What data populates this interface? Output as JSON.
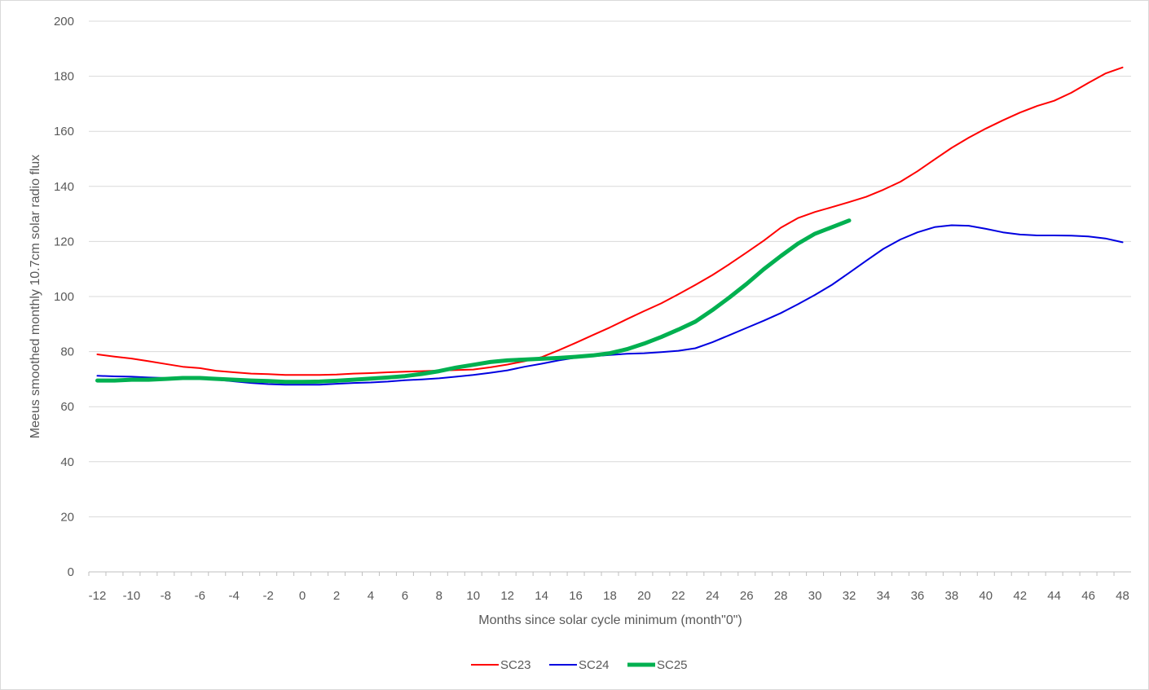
{
  "chart_data": {
    "type": "line",
    "title": "",
    "xlabel": "Months since solar cycle minimum (month\"0\")",
    "ylabel": "Meeus smoothed monthly 10.7cm solar radio flux",
    "xlim": [
      -12.5,
      48.5
    ],
    "ylim": [
      0,
      200
    ],
    "x_ticks": [
      -12,
      -10,
      -8,
      -6,
      -4,
      -2,
      0,
      2,
      4,
      6,
      8,
      10,
      12,
      14,
      16,
      18,
      20,
      22,
      24,
      26,
      28,
      30,
      32,
      34,
      36,
      38,
      40,
      42,
      44,
      46,
      48
    ],
    "y_ticks": [
      0,
      20,
      40,
      60,
      80,
      100,
      120,
      140,
      160,
      180,
      200
    ],
    "grid": "horizontal",
    "legend_position": "bottom",
    "series": [
      {
        "name": "SC23",
        "color": "#ff0000",
        "width": 2,
        "x": [
          -12,
          -11,
          -10,
          -9,
          -8,
          -7,
          -6,
          -5,
          -4,
          -3,
          -2,
          -1,
          0,
          1,
          2,
          3,
          4,
          5,
          6,
          7,
          8,
          9,
          10,
          11,
          12,
          13,
          14,
          15,
          16,
          17,
          18,
          19,
          20,
          21,
          22,
          23,
          24,
          25,
          26,
          27,
          28,
          29,
          30,
          31,
          32,
          33,
          34,
          35,
          36,
          37,
          38,
          39,
          40,
          41,
          42,
          43,
          44,
          45,
          46,
          47,
          48
        ],
        "values": [
          79,
          78.2,
          77.5,
          76.5,
          75.5,
          74.5,
          74,
          73,
          72.5,
          72,
          71.8,
          71.5,
          71.5,
          71.5,
          71.7,
          72,
          72.2,
          72.5,
          72.7,
          72.9,
          73.1,
          73.3,
          73.5,
          74.3,
          75.3,
          76.5,
          78,
          80.5,
          83.2,
          86,
          88.8,
          91.8,
          94.7,
          97.5,
          100.8,
          104.2,
          107.8,
          111.8,
          116,
          120.3,
          125,
          128.5,
          130.7,
          132.5,
          134.3,
          136.2,
          138.8,
          141.7,
          145.5,
          149.8,
          154,
          157.7,
          161,
          164,
          166.8,
          169.2,
          171.1,
          174,
          177.6,
          181,
          183.2
        ]
      },
      {
        "name": "SC24",
        "color": "#0000e0",
        "width": 2,
        "x": [
          -12,
          -11,
          -10,
          -9,
          -8,
          -7,
          -6,
          -5,
          -4,
          -3,
          -2,
          -1,
          0,
          1,
          2,
          3,
          4,
          5,
          6,
          7,
          8,
          9,
          10,
          11,
          12,
          13,
          14,
          15,
          16,
          17,
          18,
          19,
          20,
          21,
          22,
          23,
          24,
          25,
          26,
          27,
          28,
          29,
          30,
          31,
          32,
          33,
          34,
          35,
          36,
          37,
          38,
          39,
          40,
          41,
          42,
          43,
          44,
          45,
          46,
          47,
          48
        ],
        "values": [
          71.2,
          71,
          70.9,
          70.6,
          70.4,
          70.4,
          70.2,
          69.8,
          69.2,
          68.6,
          68.2,
          68,
          68,
          68,
          68.3,
          68.6,
          68.8,
          69.1,
          69.6,
          69.9,
          70.3,
          70.9,
          71.5,
          72.3,
          73.2,
          74.5,
          75.6,
          76.8,
          77.8,
          78.3,
          78.8,
          79.2,
          79.4,
          79.8,
          80.3,
          81.2,
          83.4,
          86,
          88.6,
          91.2,
          94,
          97.2,
          100.6,
          104.3,
          108.6,
          113,
          117.3,
          120.7,
          123.3,
          125.2,
          125.9,
          125.7,
          124.6,
          123.3,
          122.5,
          122.2,
          122.2,
          122.1,
          121.8,
          121.1,
          119.7
        ]
      },
      {
        "name": "SC25",
        "color": "#00b050",
        "width": 5,
        "x": [
          -12,
          -11,
          -10,
          -9,
          -8,
          -7,
          -6,
          -5,
          -4,
          -3,
          -2,
          -1,
          0,
          1,
          2,
          3,
          4,
          5,
          6,
          7,
          8,
          9,
          10,
          11,
          12,
          13,
          14,
          15,
          16,
          17,
          18,
          19,
          20,
          21,
          22,
          23,
          24,
          25,
          26,
          27,
          28,
          29,
          30,
          31,
          32
        ],
        "values": [
          69.5,
          69.5,
          69.8,
          69.8,
          70.1,
          70.4,
          70.4,
          70.1,
          69.8,
          69.5,
          69.3,
          69,
          69,
          69.1,
          69.4,
          69.8,
          70.2,
          70.6,
          71.1,
          71.9,
          72.9,
          74.2,
          75.2,
          76.2,
          76.8,
          77.1,
          77.4,
          77.7,
          78.1,
          78.6,
          79.4,
          80.9,
          82.9,
          85.3,
          88,
          90.9,
          95.1,
          99.7,
          104.6,
          109.9,
          114.7,
          119.2,
          122.8,
          125.2,
          127.6
        ]
      }
    ]
  }
}
